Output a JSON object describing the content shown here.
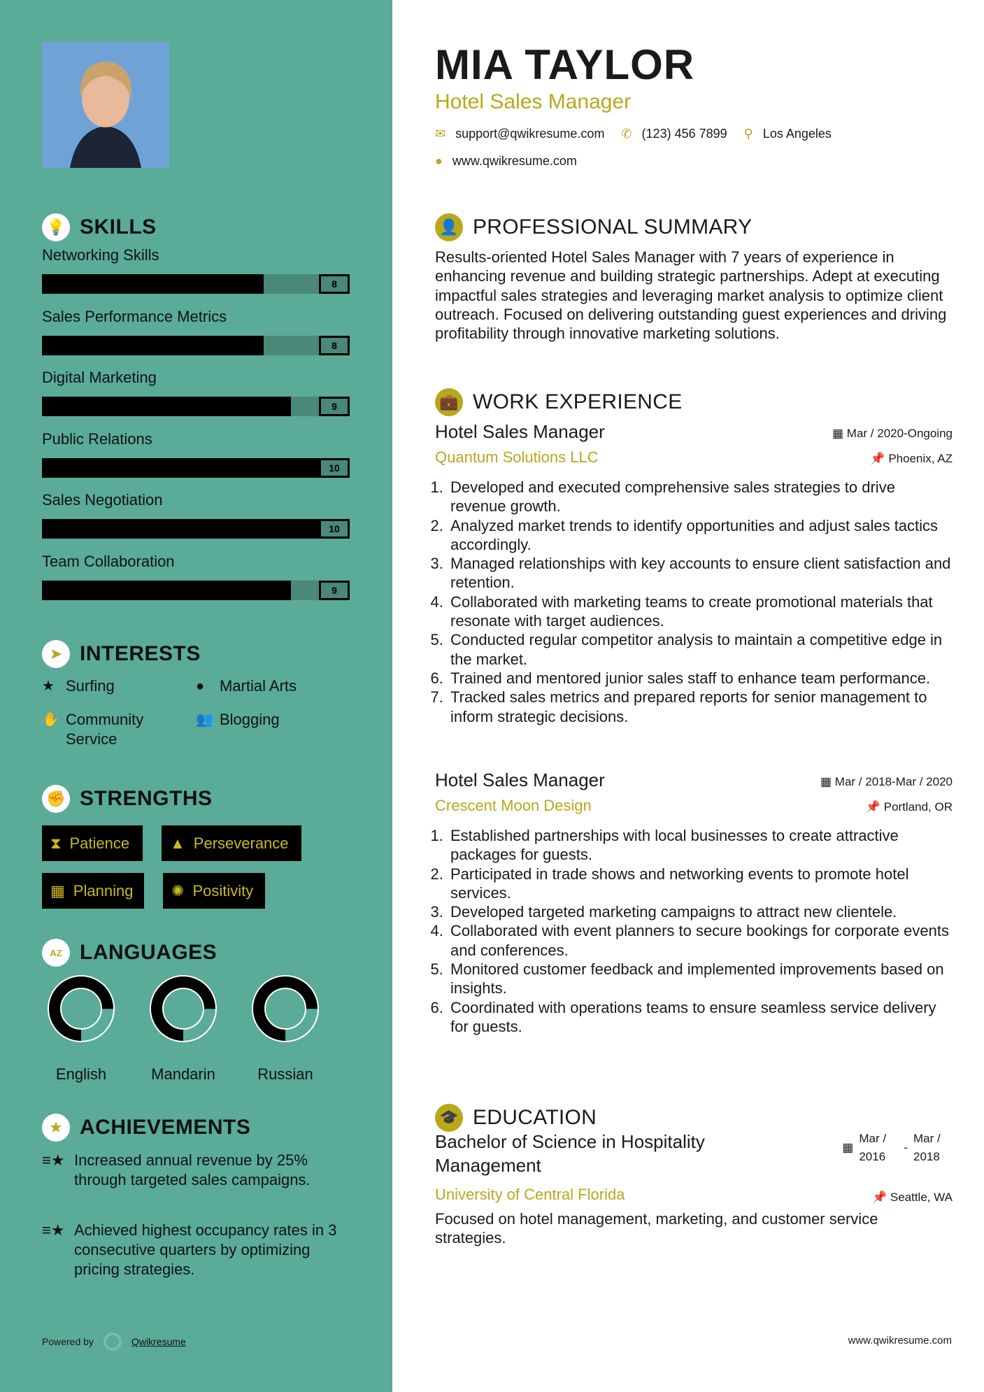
{
  "profile": {
    "name": "MIA TAYLOR",
    "title": "Hotel Sales Manager",
    "email": "support@qwikresume.com",
    "phone": "(123) 456 7899",
    "location": "Los Angeles",
    "website": "www.qwikresume.com"
  },
  "colors": {
    "sidebar": "#5aab98",
    "accent": "#b8a81c",
    "track": "#4a8878"
  },
  "skills": {
    "heading": "SKILLS",
    "icon": "lightbulb-icon",
    "items": [
      {
        "label": "Networking Skills",
        "value": 8,
        "display": "8"
      },
      {
        "label": "Sales Performance Metrics",
        "value": 8,
        "display": "8"
      },
      {
        "label": "Digital Marketing",
        "value": 9,
        "display": "9"
      },
      {
        "label": "Public Relations",
        "value": 10,
        "display": "10"
      },
      {
        "label": "Sales Negotiation",
        "value": 10,
        "display": "10"
      },
      {
        "label": "Team Collaboration",
        "value": 9,
        "display": "9"
      }
    ]
  },
  "interests": {
    "heading": "INTERESTS",
    "icon": "paper-plane-icon",
    "items": [
      {
        "label": "Surfing",
        "icon": "star-icon"
      },
      {
        "label": "Martial Arts",
        "icon": "globe-icon"
      },
      {
        "label": "Community Service",
        "icon": "hand-icon"
      },
      {
        "label": "Blogging",
        "icon": "users-icon"
      }
    ]
  },
  "strengths": {
    "heading": "STRENGTHS",
    "icon": "fist-icon",
    "items": [
      {
        "label": "Patience",
        "icon": "hourglass-icon"
      },
      {
        "label": "Perseverance",
        "icon": "road-icon"
      },
      {
        "label": "Planning",
        "icon": "calendar-icon"
      },
      {
        "label": "Positivity",
        "icon": "sun-icon"
      }
    ]
  },
  "languages": {
    "heading": "LANGUAGES",
    "icon": "language-icon",
    "items": [
      {
        "label": "English",
        "level_percent": 75
      },
      {
        "label": "Mandarin",
        "level_percent": 75
      },
      {
        "label": "Russian",
        "level_percent": 75
      }
    ]
  },
  "achievements": {
    "heading": "ACHIEVEMENTS",
    "icon": "star-badge-icon",
    "items": [
      "Increased annual revenue by 25% through targeted sales campaigns.",
      "Achieved highest occupancy rates in 3 consecutive quarters by optimizing pricing strategies."
    ]
  },
  "summary": {
    "heading": "PROFESSIONAL SUMMARY",
    "text": "Results-oriented Hotel Sales Manager with 7 years of experience in enhancing revenue and building strategic partnerships. Adept at executing impactful sales strategies and leveraging market analysis to optimize client outreach. Focused on delivering outstanding guest experiences and driving profitability through innovative marketing solutions."
  },
  "work": {
    "heading": "WORK EXPERIENCE",
    "jobs": [
      {
        "title": "Hotel Sales Manager",
        "company": "Quantum Solutions LLC",
        "dates": "Mar / 2020-Ongoing",
        "location": "Phoenix, AZ",
        "bullets": [
          "Developed and executed comprehensive sales strategies to drive revenue growth.",
          "Analyzed market trends to identify opportunities and adjust sales tactics accordingly.",
          "Managed relationships with key accounts to ensure client satisfaction and retention.",
          "Collaborated with marketing teams to create promotional materials that resonate with target audiences.",
          "Conducted regular competitor analysis to maintain a competitive edge in the market.",
          "Trained and mentored junior sales staff to enhance team performance.",
          "Tracked sales metrics and prepared reports for senior management to inform strategic decisions."
        ]
      },
      {
        "title": "Hotel Sales Manager",
        "company": "Crescent Moon Design",
        "dates": "Mar / 2018-Mar / 2020",
        "location": "Portland, OR",
        "bullets": [
          "Established partnerships with local businesses to create attractive packages for guests.",
          "Participated in trade shows and networking events to promote hotel services.",
          "Developed targeted marketing campaigns to attract new clientele.",
          "Collaborated with event planners to secure bookings for corporate events and conferences.",
          "Monitored customer feedback and implemented improvements based on insights.",
          "Coordinated with operations teams to ensure seamless service delivery for guests."
        ]
      }
    ]
  },
  "education": {
    "heading": "EDUCATION",
    "degree": "Bachelor of Science in Hospitality Management",
    "school": "University of Central Florida",
    "start": "Mar / 2016",
    "end": "Mar / 2018",
    "location": "Seattle, WA",
    "description": "Focused on hotel management, marketing, and customer service strategies."
  },
  "footer": {
    "powered_by": "Powered by",
    "brand": "Qwikresume",
    "website": "www.qwikresume.com"
  }
}
